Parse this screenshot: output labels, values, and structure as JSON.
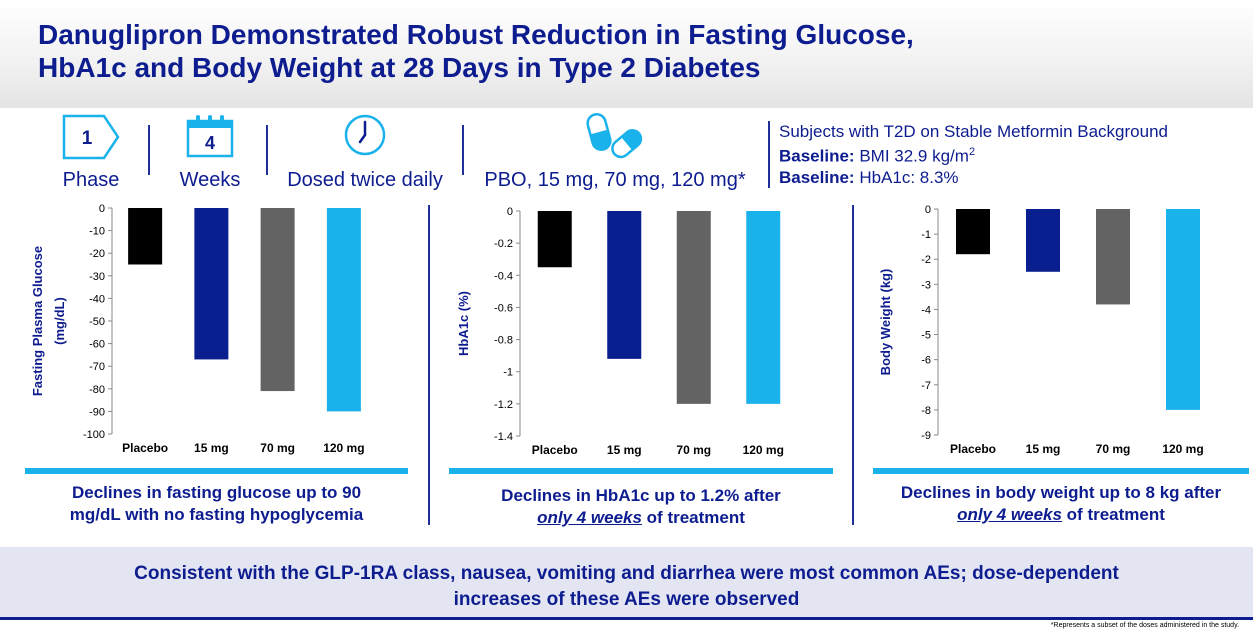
{
  "header": {
    "title_line1": "Danuglipron Demonstrated Robust Reduction in Fasting Glucose,",
    "title_line2": "HbA1c and Body Weight at 28 Days in Type 2 Diabetes"
  },
  "study_info": {
    "phase_value": "1",
    "phase_label": "Phase",
    "weeks_value": "4",
    "weeks_label": "Weeks",
    "dosing_label": "Dosed twice daily",
    "doses_label": "PBO, 15 mg, 70 mg, 120 mg*",
    "icons": [
      "arrow-badge-icon",
      "calendar-icon",
      "clock-icon",
      "pills-icon"
    ]
  },
  "subjects": {
    "heading": "Subjects with T2D on Stable Metformin Background",
    "baseline_label": "Baseline:",
    "bmi_text": "BMI 32.9 kg/m",
    "bmi_superscript": "2",
    "hba1c_text": "HbA1c: 8.3%"
  },
  "chart_data": [
    {
      "type": "bar",
      "ylabel_line1": "Fasting Plasma Glucose",
      "ylabel_line2": "(mg/dL)",
      "categories": [
        "Placebo",
        "15 mg",
        "70 mg",
        "120 mg"
      ],
      "values": [
        -25,
        -67,
        -81,
        -90
      ],
      "ylim": [
        -100,
        0
      ],
      "yticks": [
        0,
        -10,
        -20,
        -30,
        -40,
        -50,
        -60,
        -70,
        -80,
        -90,
        -100
      ],
      "ytick_labels": [
        "0",
        "-10",
        "-20",
        "-30",
        "-40",
        "-50",
        "-60",
        "-70",
        "-80",
        "-90",
        "-100"
      ],
      "colors": [
        "#000000",
        "#0a1f8f",
        "#636363",
        "#1ab2ea"
      ],
      "caption_line1": "Declines in fasting glucose up to 90",
      "caption_line2": "mg/dL with no fasting hypoglycemia"
    },
    {
      "type": "bar",
      "ylabel_line1": "HbA1c (%)",
      "categories": [
        "Placebo",
        "15 mg",
        "70 mg",
        "120 mg"
      ],
      "values": [
        -0.35,
        -0.92,
        -1.2,
        -1.2
      ],
      "ylim": [
        -1.4,
        0
      ],
      "yticks": [
        0,
        -0.2,
        -0.4,
        -0.6,
        -0.8,
        -1,
        -1.2,
        -1.4
      ],
      "ytick_labels": [
        "0",
        "-0.2",
        "-0.4",
        "-0.6",
        "-0.8",
        "-1",
        "-1.2",
        "-1.4"
      ],
      "colors": [
        "#000000",
        "#0a1f8f",
        "#636363",
        "#1ab2ea"
      ],
      "caption_line1": "Declines in HbA1c up to 1.2% after",
      "caption_emph": "only 4 weeks",
      "caption_rest": " of treatment"
    },
    {
      "type": "bar",
      "ylabel_line1": "Body Weight (kg)",
      "categories": [
        "Placebo",
        "15 mg",
        "70 mg",
        "120 mg"
      ],
      "values": [
        -1.8,
        -2.5,
        -3.8,
        -8
      ],
      "ylim": [
        -9,
        0
      ],
      "yticks": [
        0,
        -1,
        -2,
        -3,
        -4,
        -5,
        -6,
        -7,
        -8,
        -9
      ],
      "ytick_labels": [
        "0",
        "-1",
        "-2",
        "-3",
        "-4",
        "-5",
        "-6",
        "-7",
        "-8",
        "-9"
      ],
      "colors": [
        "#000000",
        "#0a1f8f",
        "#636363",
        "#1ab2ea"
      ],
      "caption_line1": "Declines in body weight up to 8 kg after",
      "caption_emph": "only 4 weeks",
      "caption_rest": " of treatment"
    }
  ],
  "banner": {
    "line1": "Consistent with the GLP-1RA class, nausea, vomiting and diarrhea were most common AEs; dose-dependent",
    "line2": "increases of these AEs were observed"
  },
  "footnote": "*Represents a subset of the doses administered in the study."
}
